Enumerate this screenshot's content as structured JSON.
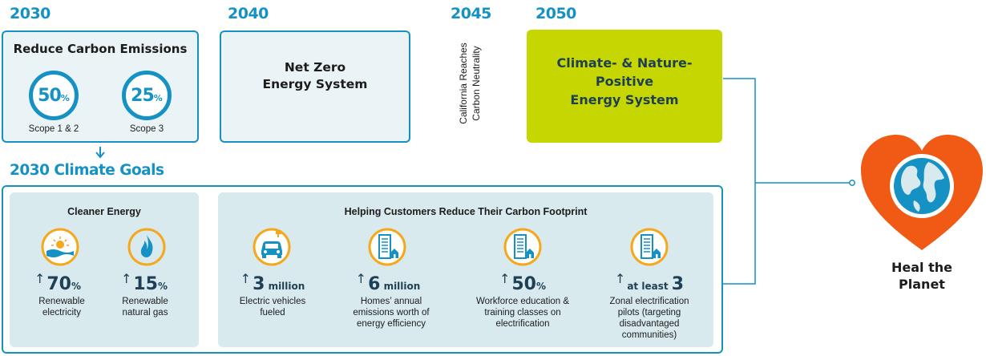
{
  "colors": {
    "accent": "#1591c4",
    "navy": "#1e3f55",
    "lime": "#c5d600",
    "heart": "#f05a14",
    "panel": "#d8eaee",
    "icon_ring": "#f5a81c"
  },
  "timeline": {
    "y2030": "2030",
    "y2040": "2040",
    "y2045": "2045",
    "y2050": "2050"
  },
  "box_2030": {
    "title": "Reduce Carbon Emissions",
    "rings": [
      {
        "value": "50",
        "unit": "%",
        "label": "Scope 1 & 2"
      },
      {
        "value": "25",
        "unit": "%",
        "label": "Scope 3"
      }
    ]
  },
  "box_2040": {
    "line1": "Net Zero",
    "line2": "Energy System"
  },
  "milestone_2045": {
    "line1": "California Reaches",
    "line2": "Carbon Neutrality"
  },
  "box_2050": {
    "line1": "Climate- & Nature-",
    "line2": "Positive",
    "line3": "Energy System"
  },
  "goals": {
    "heading": "2030 Climate Goals",
    "cleaner_energy": {
      "title": "Cleaner Energy",
      "items": [
        {
          "icon": "sun-wave-icon",
          "value": "70",
          "unit": "%",
          "desc1": "Renewable",
          "desc2": "electricity"
        },
        {
          "icon": "flame-cycle-icon",
          "value": "15",
          "unit": "%",
          "desc1": "Renewable",
          "desc2": "natural gas"
        }
      ]
    },
    "customers": {
      "title": "Helping Customers Reduce Their Carbon Footprint",
      "items": [
        {
          "icon": "electric-car-icon",
          "prefix": "",
          "value": "3",
          "unit": " million",
          "desc": [
            "Electric vehicles",
            "fueled"
          ]
        },
        {
          "icon": "building-home-icon",
          "prefix": "",
          "value": "6",
          "unit": " million",
          "desc": [
            "Homes’ annual",
            "emissions worth of",
            "energy efficiency"
          ]
        },
        {
          "icon": "building-home-icon",
          "prefix": "",
          "value": "50",
          "unit": "%",
          "desc": [
            "Workforce education &",
            "training classes on",
            "electrification"
          ]
        },
        {
          "icon": "building-home-icon",
          "prefix": "at least ",
          "value": "3",
          "unit": "",
          "desc": [
            "Zonal electrification",
            "pilots (targeting",
            "disadvantaged",
            "communities)"
          ]
        }
      ]
    }
  },
  "outcome": {
    "line1": "Heal the",
    "line2": "Planet"
  }
}
